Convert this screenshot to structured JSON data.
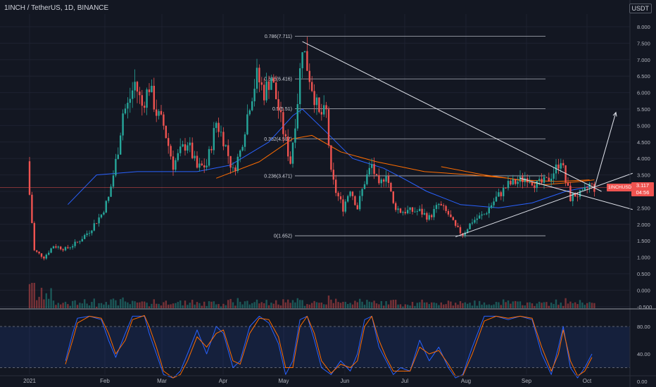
{
  "header": {
    "symbol_title": "1INCH / TetherUS, 1D, BINANCE",
    "currency_badge": "USDT"
  },
  "price_tag": {
    "value": "3.117",
    "countdown": "04:56",
    "symbol": "1INCHUSDT"
  },
  "colors": {
    "background": "#131722",
    "up": "#26a69a",
    "down": "#ef5350",
    "ma_blue": "#2962ff",
    "ma_orange": "#ff6d00",
    "stoch_k": "#2962ff",
    "stoch_d": "#ff6d00",
    "fib_line": "#b2b5be"
  },
  "chart_data": [
    {
      "type": "candlestick",
      "title": "1INCH / TetherUS, 1D, BINANCE",
      "xlabel": "",
      "ylabel": "",
      "x_ticks": [
        "2021",
        "Feb",
        "Mar",
        "Apr",
        "May",
        "Jun",
        "Jul",
        "Aug",
        "Sep",
        "Oct"
      ],
      "y_ticks": [
        "8.000",
        "7.500",
        "7.000",
        "6.500",
        "6.000",
        "5.500",
        "5.000",
        "4.500",
        "4.000",
        "3.500",
        "3.000",
        "2.500",
        "2.000",
        "1.500",
        "1.000",
        "0.500",
        "0.000",
        "-0.500"
      ],
      "ylim": [
        -0.5,
        8.5
      ],
      "last_price": 3.117,
      "price_series": [
        [
          0,
          2.9
        ],
        [
          2,
          1.2
        ],
        [
          6,
          1.0
        ],
        [
          10,
          1.35
        ],
        [
          15,
          1.25
        ],
        [
          20,
          1.45
        ],
        [
          25,
          1.8
        ],
        [
          30,
          2.3
        ],
        [
          33,
          2.8
        ],
        [
          35,
          3.5
        ],
        [
          37,
          4.3
        ],
        [
          39,
          5.4
        ],
        [
          41,
          5.6
        ],
        [
          44,
          6.3
        ],
        [
          47,
          5.6
        ],
        [
          50,
          6.2
        ],
        [
          53,
          5.4
        ],
        [
          56,
          5.0
        ],
        [
          60,
          3.8
        ],
        [
          63,
          4.2
        ],
        [
          66,
          4.5
        ],
        [
          70,
          3.7
        ],
        [
          74,
          3.8
        ],
        [
          78,
          5.1
        ],
        [
          81,
          4.6
        ],
        [
          85,
          3.6
        ],
        [
          88,
          4.2
        ],
        [
          92,
          5.7
        ],
        [
          95,
          6.5
        ],
        [
          98,
          6.0
        ],
        [
          101,
          6.5
        ],
        [
          104,
          5.5
        ],
        [
          107,
          4.5
        ],
        [
          109,
          3.9
        ],
        [
          112,
          5.8
        ],
        [
          114,
          7.5
        ],
        [
          116,
          6.8
        ],
        [
          118,
          6.2
        ],
        [
          121,
          5.3
        ],
        [
          124,
          5.4
        ],
        [
          126,
          3.5
        ],
        [
          128,
          3.0
        ],
        [
          131,
          2.5
        ],
        [
          134,
          3.1
        ],
        [
          137,
          2.5
        ],
        [
          140,
          3.3
        ],
        [
          143,
          3.8
        ],
        [
          146,
          3.1
        ],
        [
          149,
          3.6
        ],
        [
          152,
          2.6
        ],
        [
          155,
          2.4
        ],
        [
          159,
          2.4
        ],
        [
          163,
          2.4
        ],
        [
          167,
          2.2
        ],
        [
          171,
          2.6
        ],
        [
          175,
          2.3
        ],
        [
          178,
          1.9
        ],
        [
          181,
          1.7
        ],
        [
          185,
          2.1
        ],
        [
          190,
          2.3
        ],
        [
          195,
          2.8
        ],
        [
          200,
          3.2
        ],
        [
          204,
          3.3
        ],
        [
          208,
          3.45
        ],
        [
          212,
          3.2
        ],
        [
          216,
          3.3
        ],
        [
          220,
          3.7
        ],
        [
          222,
          4.0
        ],
        [
          224,
          3.3
        ],
        [
          226,
          2.8
        ],
        [
          228,
          2.9
        ],
        [
          231,
          2.9
        ],
        [
          234,
          3.2
        ],
        [
          236,
          3.1
        ]
      ],
      "ma_blue": [
        [
          16,
          2.6
        ],
        [
          28,
          3.5
        ],
        [
          45,
          3.6
        ],
        [
          70,
          3.6
        ],
        [
          84,
          3.8
        ],
        [
          100,
          4.5
        ],
        [
          110,
          5.3
        ],
        [
          114,
          5.5
        ],
        [
          124,
          4.8
        ],
        [
          135,
          4.0
        ],
        [
          148,
          3.7
        ],
        [
          156,
          3.4
        ],
        [
          166,
          3.0
        ],
        [
          180,
          2.6
        ],
        [
          196,
          2.5
        ],
        [
          210,
          2.65
        ],
        [
          224,
          3.0
        ],
        [
          234,
          3.15
        ]
      ],
      "ma_orange": [
        [
          78,
          3.4
        ],
        [
          96,
          3.9
        ],
        [
          110,
          4.6
        ],
        [
          118,
          4.7
        ],
        [
          130,
          4.2
        ],
        [
          145,
          3.9
        ],
        [
          165,
          3.6
        ],
        [
          185,
          3.5
        ],
        [
          200,
          3.4
        ],
        [
          215,
          3.2
        ],
        [
          230,
          3.3
        ],
        [
          236,
          3.35
        ]
      ],
      "ma_orange_2": [
        [
          172,
          3.75
        ],
        [
          190,
          3.5
        ],
        [
          205,
          3.35
        ],
        [
          220,
          3.3
        ],
        [
          234,
          3.35
        ]
      ],
      "fibonacci": [
        {
          "label": "0.786(7.711)",
          "value": 7.711
        },
        {
          "label": "0.618(6.416)",
          "value": 6.416
        },
        {
          "label": "0.5(5.51)",
          "value": 5.51
        },
        {
          "label": "0.382(4.597)",
          "value": 4.597
        },
        {
          "label": "0.236(3.471)",
          "value": 3.471
        },
        {
          "label": "0(1.652)",
          "value": 1.652
        }
      ],
      "trendlines": [
        {
          "from": [
            114,
            7.55
          ],
          "to": [
            239,
            3.0
          ]
        },
        {
          "from": [
            178,
            1.62
          ],
          "to": [
            252,
            3.55
          ]
        },
        {
          "from": [
            205,
            3.4
          ],
          "to": [
            252,
            2.45
          ]
        }
      ],
      "projection_arrow": {
        "from": [
          236,
          3.1
        ],
        "to": [
          245,
          5.4
        ]
      }
    },
    {
      "type": "line",
      "title": "",
      "xlabel": "",
      "ylabel": "",
      "y_ticks": [
        "80.00",
        "40.00",
        "0.00"
      ],
      "ylim": [
        -10,
        105
      ],
      "band": [
        20,
        80
      ],
      "series": [
        {
          "values": [
            [
              15,
              30
            ],
            [
              18,
              70
            ],
            [
              20,
              92
            ],
            [
              25,
              95
            ],
            [
              30,
              90
            ],
            [
              33,
              60
            ],
            [
              36,
              35
            ],
            [
              40,
              70
            ],
            [
              43,
              95
            ],
            [
              48,
              95
            ],
            [
              50,
              70
            ],
            [
              53,
              40
            ],
            [
              56,
              10
            ],
            [
              60,
              5
            ],
            [
              63,
              15
            ],
            [
              66,
              40
            ],
            [
              70,
              75
            ],
            [
              74,
              40
            ],
            [
              78,
              80
            ],
            [
              81,
              70
            ],
            [
              85,
              20
            ],
            [
              88,
              30
            ],
            [
              92,
              80
            ],
            [
              96,
              95
            ],
            [
              100,
              85
            ],
            [
              104,
              55
            ],
            [
              107,
              10
            ],
            [
              110,
              30
            ],
            [
              113,
              90
            ],
            [
              116,
              95
            ],
            [
              119,
              60
            ],
            [
              122,
              20
            ],
            [
              126,
              10
            ],
            [
              130,
              30
            ],
            [
              134,
              15
            ],
            [
              137,
              40
            ],
            [
              140,
              90
            ],
            [
              143,
              95
            ],
            [
              146,
              50
            ],
            [
              149,
              30
            ],
            [
              152,
              10
            ],
            [
              155,
              20
            ],
            [
              159,
              15
            ],
            [
              163,
              60
            ],
            [
              167,
              30
            ],
            [
              171,
              50
            ],
            [
              175,
              20
            ],
            [
              178,
              5
            ],
            [
              181,
              10
            ],
            [
              185,
              50
            ],
            [
              190,
              95
            ],
            [
              195,
              95
            ],
            [
              200,
              90
            ],
            [
              205,
              95
            ],
            [
              210,
              90
            ],
            [
              214,
              40
            ],
            [
              218,
              10
            ],
            [
              221,
              50
            ],
            [
              223,
              80
            ],
            [
              226,
              20
            ],
            [
              229,
              5
            ],
            [
              232,
              20
            ],
            [
              235,
              40
            ]
          ]
        },
        {
          "values": [
            [
              15,
              25
            ],
            [
              18,
              60
            ],
            [
              20,
              85
            ],
            [
              25,
              95
            ],
            [
              30,
              92
            ],
            [
              33,
              70
            ],
            [
              36,
              40
            ],
            [
              40,
              60
            ],
            [
              43,
              90
            ],
            [
              48,
              96
            ],
            [
              50,
              80
            ],
            [
              53,
              50
            ],
            [
              56,
              15
            ],
            [
              60,
              5
            ],
            [
              63,
              10
            ],
            [
              66,
              30
            ],
            [
              70,
              65
            ],
            [
              74,
              50
            ],
            [
              78,
              70
            ],
            [
              81,
              75
            ],
            [
              85,
              30
            ],
            [
              88,
              25
            ],
            [
              92,
              70
            ],
            [
              96,
              92
            ],
            [
              100,
              90
            ],
            [
              104,
              65
            ],
            [
              107,
              20
            ],
            [
              110,
              20
            ],
            [
              113,
              80
            ],
            [
              116,
              95
            ],
            [
              119,
              70
            ],
            [
              122,
              30
            ],
            [
              126,
              12
            ],
            [
              130,
              25
            ],
            [
              134,
              20
            ],
            [
              137,
              30
            ],
            [
              140,
              80
            ],
            [
              143,
              95
            ],
            [
              146,
              60
            ],
            [
              149,
              35
            ],
            [
              152,
              15
            ],
            [
              155,
              15
            ],
            [
              159,
              15
            ],
            [
              163,
              50
            ],
            [
              167,
              40
            ],
            [
              171,
              45
            ],
            [
              175,
              25
            ],
            [
              178,
              8
            ],
            [
              181,
              8
            ],
            [
              185,
              40
            ],
            [
              190,
              88
            ],
            [
              195,
              95
            ],
            [
              200,
              92
            ],
            [
              205,
              95
            ],
            [
              210,
              92
            ],
            [
              214,
              50
            ],
            [
              218,
              15
            ],
            [
              221,
              40
            ],
            [
              223,
              75
            ],
            [
              226,
              30
            ],
            [
              229,
              8
            ],
            [
              232,
              15
            ],
            [
              235,
              35
            ]
          ]
        }
      ]
    }
  ]
}
